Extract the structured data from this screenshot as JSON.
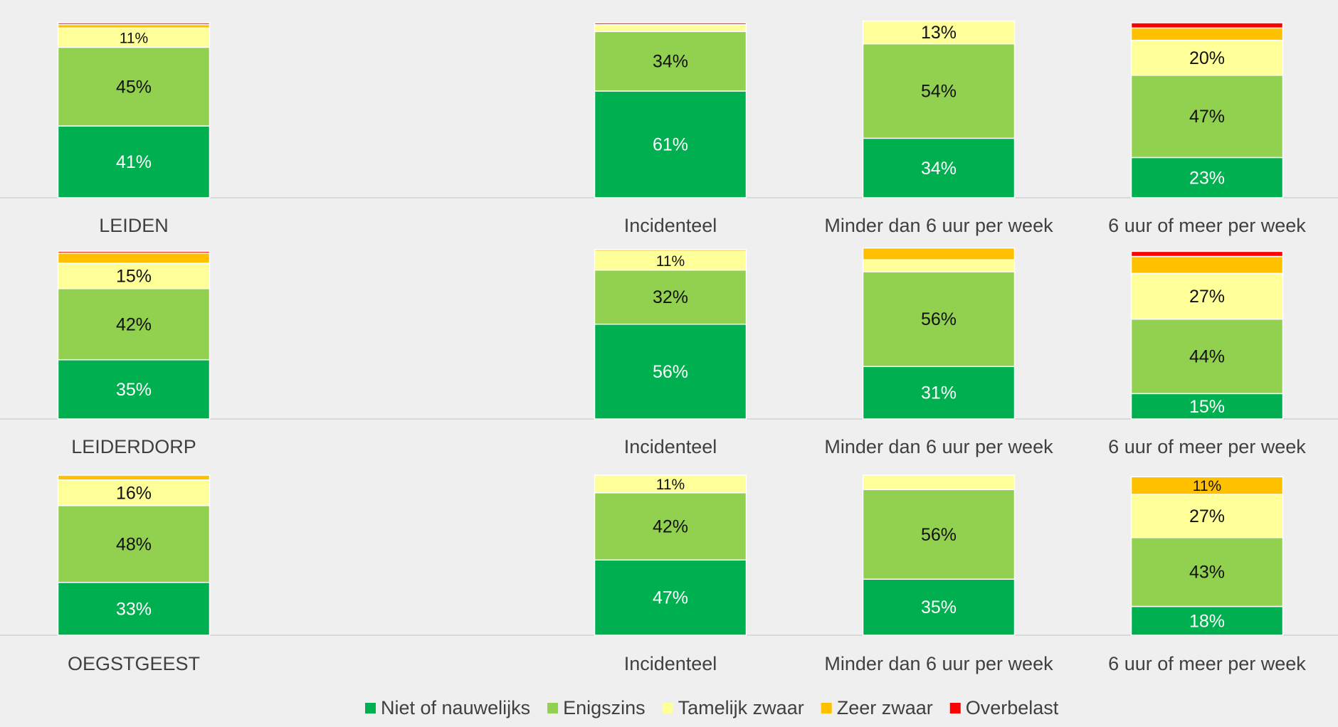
{
  "chart_data": [
    {
      "type": "bar",
      "stacked": true,
      "ylim": [
        0,
        100
      ],
      "categories": [
        "LEIDEN",
        null,
        "Incidenteel",
        "Minder dan 6 uur per week",
        "6 uur of meer per week"
      ],
      "series": [
        {
          "name": "Niet of nauwelijks",
          "color": "#00b050",
          "values": [
            41,
            null,
            61,
            34,
            23
          ],
          "value_labels": [
            "41%",
            null,
            "61%",
            "34%",
            "23%"
          ]
        },
        {
          "name": "Enigszins",
          "color": "#92d050",
          "values": [
            45,
            null,
            34,
            54,
            47
          ],
          "value_labels": [
            "45%",
            null,
            "34%",
            "54%",
            "47%"
          ]
        },
        {
          "name": "Tamelijk zwaar",
          "color": "#ffff99",
          "values": [
            11,
            null,
            4,
            13,
            20
          ],
          "value_labels": [
            "11%",
            null,
            null,
            "13%",
            "20%"
          ]
        },
        {
          "name": "Zeer zwaar",
          "color": "#ffc000",
          "values": [
            2,
            null,
            0,
            0,
            7
          ],
          "value_labels": [
            null,
            null,
            null,
            null,
            null
          ]
        },
        {
          "name": "Overbelast",
          "color": "#ff0000",
          "values": [
            1,
            null,
            1,
            0,
            3
          ],
          "value_labels": [
            null,
            null,
            null,
            null,
            null
          ]
        }
      ]
    },
    {
      "type": "bar",
      "stacked": true,
      "ylim": [
        0,
        100
      ],
      "categories": [
        "LEIDERDORP",
        null,
        "Incidenteel",
        "Minder dan 6 uur per week",
        "6 uur of meer per week"
      ],
      "series": [
        {
          "name": "Niet of nauwelijks",
          "color": "#00b050",
          "values": [
            35,
            null,
            56,
            31,
            15
          ],
          "value_labels": [
            "35%",
            null,
            "56%",
            "31%",
            "15%"
          ]
        },
        {
          "name": "Enigszins",
          "color": "#92d050",
          "values": [
            42,
            null,
            32,
            56,
            44
          ],
          "value_labels": [
            "42%",
            null,
            "32%",
            "56%",
            "44%"
          ]
        },
        {
          "name": "Tamelijk zwaar",
          "color": "#ffff99",
          "values": [
            15,
            null,
            11,
            7,
            27
          ],
          "value_labels": [
            "15%",
            null,
            "11%",
            null,
            "27%"
          ]
        },
        {
          "name": "Zeer zwaar",
          "color": "#ffc000",
          "values": [
            6,
            null,
            1,
            7,
            10
          ],
          "value_labels": [
            null,
            null,
            null,
            null,
            null
          ]
        },
        {
          "name": "Overbelast",
          "color": "#ff0000",
          "values": [
            1,
            null,
            0,
            0,
            3
          ],
          "value_labels": [
            null,
            null,
            null,
            null,
            null
          ]
        }
      ]
    },
    {
      "type": "bar",
      "stacked": true,
      "ylim": [
        0,
        100
      ],
      "categories": [
        "OEGSTGEEST",
        null,
        "Incidenteel",
        "Minder dan 6 uur per week",
        "6 uur of meer per week"
      ],
      "series": [
        {
          "name": "Niet of nauwelijks",
          "color": "#00b050",
          "values": [
            33,
            null,
            47,
            35,
            18
          ],
          "value_labels": [
            "33%",
            null,
            "47%",
            "35%",
            "18%"
          ]
        },
        {
          "name": "Enigszins",
          "color": "#92d050",
          "values": [
            48,
            null,
            42,
            56,
            43
          ],
          "value_labels": [
            "48%",
            null,
            "42%",
            "56%",
            "43%"
          ]
        },
        {
          "name": "Tamelijk zwaar",
          "color": "#ffff99",
          "values": [
            16,
            null,
            11,
            9,
            27
          ],
          "value_labels": [
            "16%",
            null,
            "11%",
            null,
            "27%"
          ]
        },
        {
          "name": "Zeer zwaar",
          "color": "#ffc000",
          "values": [
            3,
            null,
            0,
            0,
            11
          ],
          "value_labels": [
            null,
            null,
            null,
            null,
            "11%"
          ]
        },
        {
          "name": "Overbelast",
          "color": "#ff0000",
          "values": [
            0,
            null,
            0,
            0,
            0
          ],
          "value_labels": [
            null,
            null,
            null,
            null,
            null
          ]
        }
      ]
    }
  ]
}
